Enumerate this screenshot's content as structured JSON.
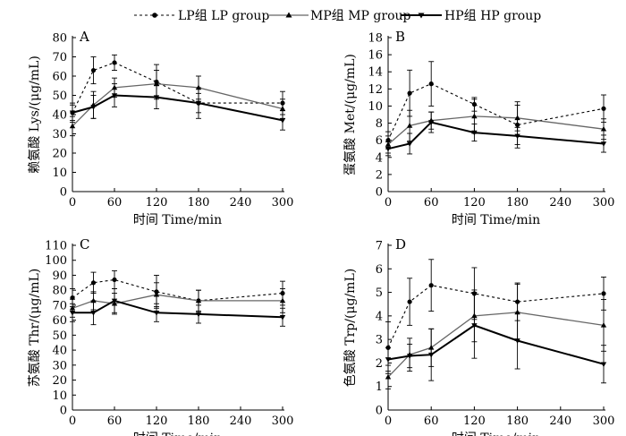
{
  "legend": [
    {
      "id": "lp",
      "label": "LP组 LP group"
    },
    {
      "id": "mp",
      "label": "MP组 MP group"
    },
    {
      "id": "hp",
      "label": "HP组 HP group"
    }
  ],
  "series_style": {
    "lp": {
      "color": "#000000",
      "dash": true,
      "marker": "circle",
      "width": 1.1
    },
    "mp": {
      "color": "#666666",
      "dash": false,
      "marker": "triangle-up",
      "width": 1.3
    },
    "hp": {
      "color": "#000000",
      "dash": false,
      "marker": "triangle-down",
      "width": 2.0
    }
  },
  "chart_data": [
    {
      "type": "line",
      "panel": "A",
      "xlabel": "时间  Time/min",
      "ylabel": "赖氨酸  Lys/(μg/mL)",
      "x": [
        0,
        30,
        60,
        120,
        180,
        300
      ],
      "xticks": [
        0,
        60,
        120,
        180,
        240,
        300
      ],
      "xlim": [
        0,
        300
      ],
      "ylim": [
        0,
        80
      ],
      "yticks": [
        0,
        10,
        20,
        30,
        40,
        50,
        60,
        70,
        80
      ],
      "series": [
        {
          "id": "lp",
          "values": [
            41,
            63,
            67,
            57,
            46,
            46
          ],
          "err": [
            5,
            7,
            4,
            9,
            8,
            6
          ]
        },
        {
          "id": "mp",
          "values": [
            34,
            45,
            54,
            56,
            54,
            43
          ],
          "err": [
            5,
            7,
            5,
            7,
            6,
            5
          ]
        },
        {
          "id": "hp",
          "values": [
            41,
            44,
            50,
            49,
            46,
            37
          ],
          "err": [
            4,
            6,
            6,
            6,
            5,
            5
          ]
        }
      ]
    },
    {
      "type": "line",
      "panel": "B",
      "xlabel": "时间  Time/min",
      "ylabel": "蛋氨酸  Met/(μg/mL)",
      "x": [
        0,
        30,
        60,
        120,
        180,
        300
      ],
      "xticks": [
        0,
        60,
        120,
        180,
        240,
        300
      ],
      "xlim": [
        0,
        300
      ],
      "ylim": [
        0,
        18
      ],
      "yticks": [
        0,
        2,
        4,
        6,
        8,
        10,
        12,
        14,
        16,
        18
      ],
      "series": [
        {
          "id": "lp",
          "values": [
            6.0,
            11.5,
            12.6,
            10.2,
            7.8,
            9.7
          ],
          "err": [
            1.0,
            2.7,
            2.6,
            0.8,
            2.7,
            1.6
          ]
        },
        {
          "id": "mp",
          "values": [
            5.5,
            7.7,
            8.3,
            8.8,
            8.6,
            7.3
          ],
          "err": [
            1.0,
            1.8,
            1.0,
            2.0,
            1.5,
            1.2
          ]
        },
        {
          "id": "hp",
          "values": [
            5.0,
            5.6,
            8.1,
            6.9,
            6.5,
            5.6
          ],
          "err": [
            0.8,
            1.2,
            1.2,
            1.0,
            1.0,
            1.0
          ]
        }
      ]
    },
    {
      "type": "line",
      "panel": "C",
      "xlabel": "时间  Time/min",
      "ylabel": "苏氨酸  Thr/(μg/mL)",
      "x": [
        0,
        30,
        60,
        120,
        180,
        300
      ],
      "xticks": [
        0,
        60,
        120,
        180,
        240,
        300
      ],
      "xlim": [
        0,
        300
      ],
      "ylim": [
        0,
        110
      ],
      "yticks": [
        0,
        10,
        20,
        30,
        40,
        50,
        60,
        70,
        80,
        90,
        100,
        110
      ],
      "series": [
        {
          "id": "lp",
          "values": [
            75,
            85,
            87,
            79,
            73,
            78
          ],
          "err": [
            6,
            7,
            6,
            11,
            7,
            8
          ]
        },
        {
          "id": "mp",
          "values": [
            68,
            73,
            71,
            77,
            73,
            73
          ],
          "err": [
            6,
            6,
            7,
            8,
            7,
            8
          ]
        },
        {
          "id": "hp",
          "values": [
            65,
            65,
            73,
            65,
            64,
            62
          ],
          "err": [
            6,
            8,
            8,
            6,
            6,
            6
          ]
        }
      ]
    },
    {
      "type": "line",
      "panel": "D",
      "xlabel": "时间  Time/min",
      "ylabel": "色氨酸  Trp/(μg/mL)",
      "x": [
        0,
        30,
        60,
        120,
        180,
        300
      ],
      "xticks": [
        0,
        60,
        120,
        180,
        240,
        300
      ],
      "xlim": [
        0,
        300
      ],
      "ylim": [
        0,
        7
      ],
      "yticks": [
        0,
        1,
        2,
        3,
        4,
        5,
        6,
        7
      ],
      "series": [
        {
          "id": "lp",
          "values": [
            2.65,
            4.6,
            5.3,
            4.95,
            4.6,
            4.95
          ],
          "err": [
            1.1,
            1.0,
            1.1,
            1.1,
            0.8,
            0.7
          ]
        },
        {
          "id": "mp",
          "values": [
            1.4,
            2.35,
            2.65,
            4.0,
            4.15,
            3.6
          ],
          "err": [
            0.5,
            0.7,
            0.8,
            1.1,
            1.2,
            1.1
          ]
        },
        {
          "id": "hp",
          "values": [
            2.15,
            2.3,
            2.35,
            3.6,
            2.95,
            1.95
          ],
          "err": [
            0.5,
            0.5,
            1.1,
            1.4,
            1.2,
            0.8
          ]
        }
      ]
    }
  ]
}
